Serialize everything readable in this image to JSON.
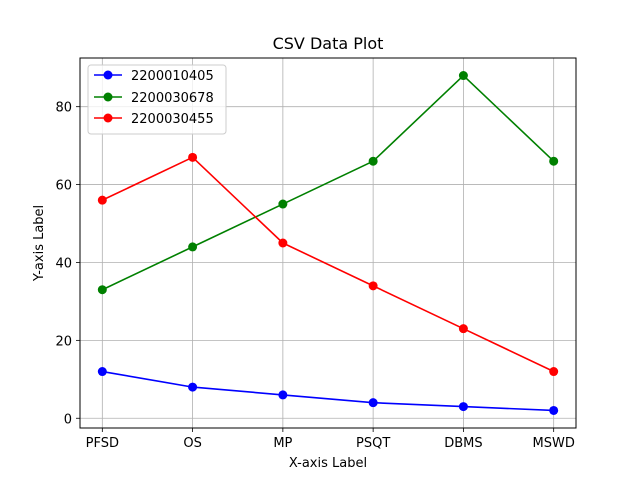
{
  "chart_data": {
    "type": "line",
    "title": "CSV Data Plot",
    "xlabel": "X-axis Label",
    "ylabel": "Y-axis Label",
    "categories": [
      "PFSD",
      "OS",
      "MP",
      "PSQT",
      "DBMS",
      "MSWD"
    ],
    "ylim": [
      -2.5,
      92.5
    ],
    "yticks": [
      0,
      20,
      40,
      60,
      80
    ],
    "grid": true,
    "legend_position": "top-left",
    "series": [
      {
        "name": "2200010405",
        "color": "#0000ff",
        "values": [
          12,
          8,
          6,
          4,
          3,
          2
        ]
      },
      {
        "name": "2200030678",
        "color": "#008000",
        "values": [
          33,
          44,
          55,
          66,
          88,
          66
        ]
      },
      {
        "name": "2200030455",
        "color": "#ff0000",
        "values": [
          56,
          67,
          45,
          34,
          23,
          12
        ]
      }
    ]
  }
}
